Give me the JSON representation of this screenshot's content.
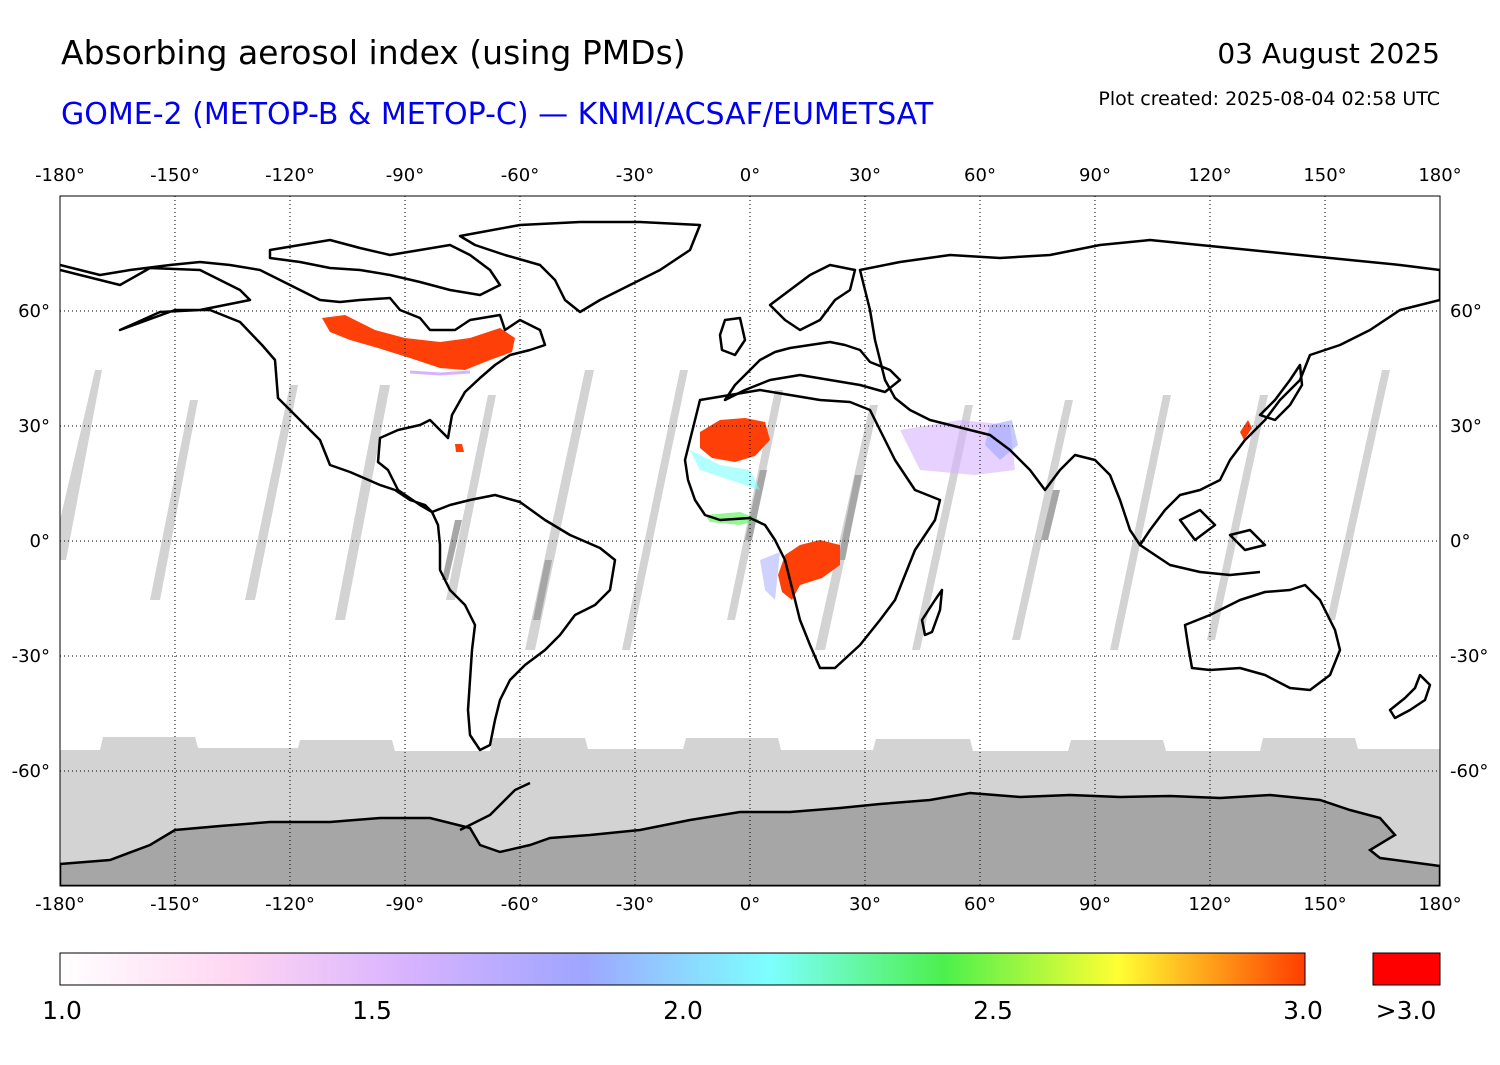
{
  "header": {
    "title": "Absorbing aerosol index (using PMDs)",
    "date": "03 August 2025",
    "subtitle": "GOME-2 (METOP-B & METOP-C) — KNMI/ACSAF/EUMETSAT",
    "created": "Plot created: 2025-08-04 02:58 UTC"
  },
  "map": {
    "lon_ticks": [
      "-180°",
      "-150°",
      "-120°",
      "-90°",
      "-60°",
      "-30°",
      "0°",
      "30°",
      "60°",
      "90°",
      "120°",
      "150°",
      "180°"
    ],
    "lat_ticks": [
      "60°",
      "30°",
      "0°",
      "-30°",
      "-60°"
    ],
    "lat_values": [
      60,
      30,
      0,
      -30,
      -60
    ],
    "lon_values": [
      -180,
      -150,
      -120,
      -90,
      -60,
      -30,
      0,
      30,
      60,
      90,
      120,
      150,
      180
    ],
    "lon_range": [
      -180,
      180
    ],
    "lat_range": [
      -90,
      90
    ],
    "grid": true,
    "no_data_color": "#d3d3d3",
    "ice_color": "#a6a6a6",
    "plumes": [
      {
        "region": "Canada smoke",
        "color": "#ff3f08"
      },
      {
        "region": "West Africa dust",
        "color": "#ff3f08"
      },
      {
        "region": "Central Africa",
        "color": "#ff3f08"
      }
    ]
  },
  "colorbar": {
    "labels": [
      "1.0",
      "1.5",
      "2.0",
      "2.5",
      "3.0"
    ],
    "over_label": ">3.0",
    "over_color": "#ff0000",
    "stops": [
      "#ffffff",
      "#ffd6f2",
      "#d7b3ff",
      "#9fa5ff",
      "#7dffff",
      "#4cf04c",
      "#ffff33",
      "#ff3d00"
    ]
  }
}
